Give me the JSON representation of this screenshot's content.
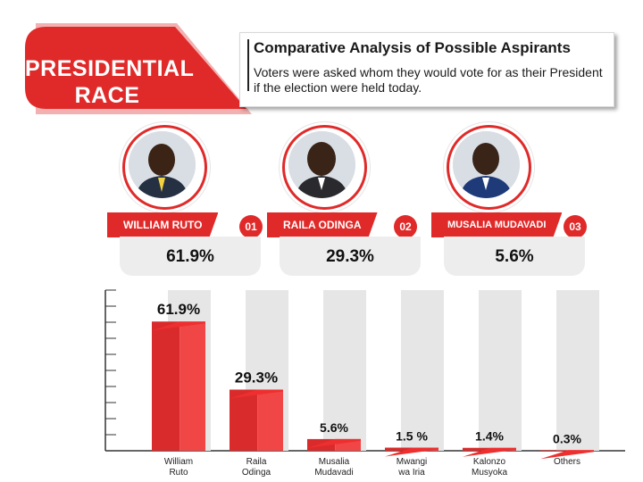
{
  "header": {
    "banner_line1": "PRESIDENTIAL",
    "banner_line2": "RACE",
    "title": "Comparative Analysis of Possible Aspirants",
    "subtitle": "Voters were asked whom they would vote for as their President if the election were held today."
  },
  "candidates": [
    {
      "name": "WILLIAM RUTO",
      "number": "01",
      "percent": "61.9%"
    },
    {
      "name": "RAILA ODINGA",
      "number": "02",
      "percent": "29.3%"
    },
    {
      "name": "MUSALIA MUDAVADI",
      "number": "03",
      "percent": "5.6%"
    }
  ],
  "colors": {
    "accent": "#e02a2a",
    "bar_front": "#d92b2b",
    "bar_side": "#f04646",
    "bar_top": "#ee2f2f",
    "track": "#e6e6e6"
  },
  "chart_data": {
    "type": "bar",
    "categories": [
      [
        "William",
        "Ruto"
      ],
      [
        "Raila",
        "Odinga"
      ],
      [
        "Musalia",
        "Mudavadi"
      ],
      [
        "Mwangi",
        "wa Iria"
      ],
      [
        "Kalonzo",
        "Musyoka"
      ],
      [
        "Others"
      ]
    ],
    "values": [
      61.9,
      29.3,
      5.6,
      1.5,
      1.4,
      0.3
    ],
    "value_labels": [
      "61.9%",
      "29.3%",
      "5.6%",
      "1.5 %",
      "1.4%",
      "0.3%"
    ],
    "ylim": [
      0,
      100
    ],
    "grid": false
  }
}
